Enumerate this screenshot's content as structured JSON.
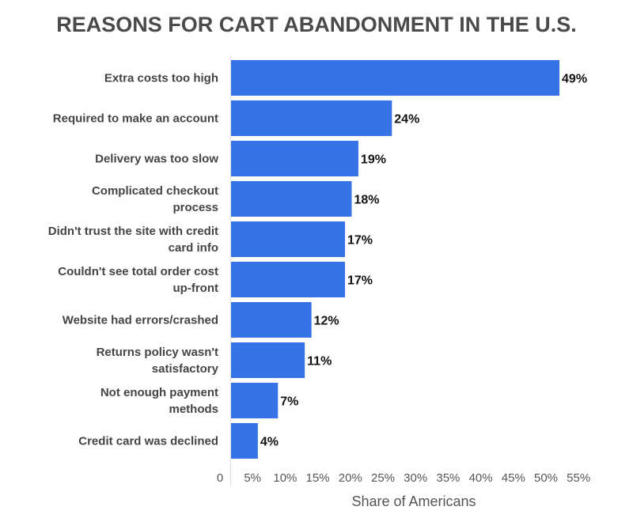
{
  "chart_data": {
    "type": "bar",
    "orientation": "horizontal",
    "title": "REASONS FOR CART ABANDONMENT IN THE U.S.",
    "xlabel": "Share of Americans",
    "ylabel": "",
    "categories": [
      [
        "Extra costs too high"
      ],
      [
        "Required to make an account"
      ],
      [
        "Delivery was too slow"
      ],
      [
        "Complicated checkout",
        "process"
      ],
      [
        "Didn't trust the site with credit",
        "card info"
      ],
      [
        "Couldn't see total order cost",
        "up-front"
      ],
      [
        "Website had errors/crashed"
      ],
      [
        "Returns policy wasn't",
        "satisfactory"
      ],
      [
        "Not enough payment",
        "methods"
      ],
      [
        "Credit card was declined"
      ]
    ],
    "values": [
      49,
      24,
      19,
      18,
      17,
      17,
      12,
      11,
      7,
      4
    ],
    "value_labels": [
      "49%",
      "24%",
      "19%",
      "18%",
      "17%",
      "17%",
      "12%",
      "11%",
      "7%",
      "4%"
    ],
    "xticks": [
      "0",
      "5%",
      "10%",
      "15%",
      "20%",
      "25%",
      "30%",
      "35%",
      "40%",
      "45%",
      "50%",
      "55%"
    ],
    "xlim": [
      0,
      55
    ],
    "grid": false,
    "bar_color": "#3573e7"
  }
}
